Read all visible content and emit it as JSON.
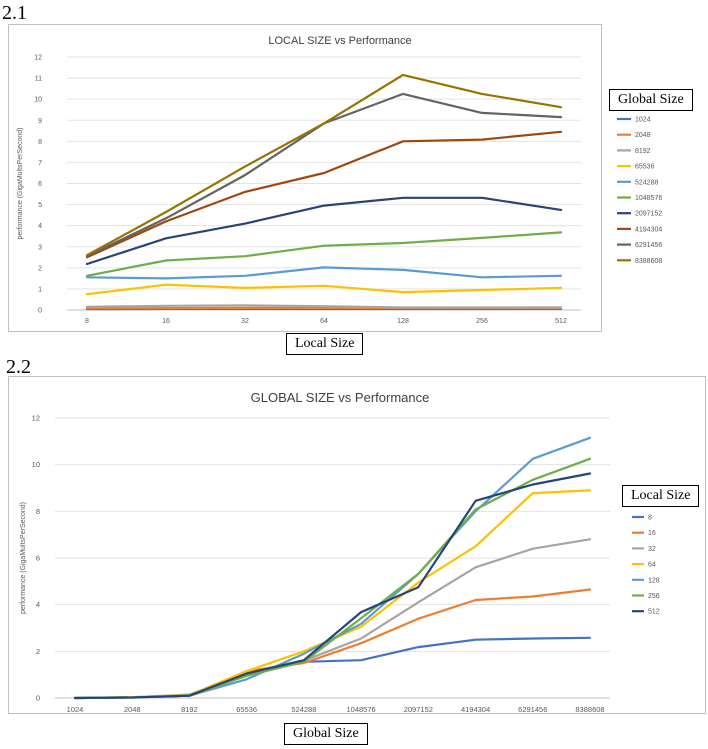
{
  "section_labels": {
    "first": "2.1",
    "second": "2.2"
  },
  "box_labels": {
    "chart1_legend": "Global Size",
    "chart1_x": "Local Size",
    "chart2_legend": "Local Size",
    "chart2_x": "Global Size"
  },
  "chart_data": [
    {
      "type": "line",
      "title": "LOCAL SIZE vs Performance",
      "xlabel": "",
      "ylabel": "performance (GigaMultsPerSecond)",
      "categories": [
        "8",
        "16",
        "32",
        "64",
        "128",
        "256",
        "512"
      ],
      "ylim": [
        0,
        12
      ],
      "yticks": [
        0,
        1,
        2,
        3,
        4,
        5,
        6,
        7,
        8,
        9,
        10,
        11,
        12
      ],
      "grid": true,
      "legend_position": "right",
      "series": [
        {
          "name": "1024",
          "color": "#4472C4",
          "values": [
            0.04,
            0.05,
            0.05,
            0.05,
            0.05,
            0.05,
            0.05
          ]
        },
        {
          "name": "2048",
          "color": "#ED7D31",
          "values": [
            0.08,
            0.09,
            0.1,
            0.1,
            0.1,
            0.1,
            0.09
          ]
        },
        {
          "name": "8192",
          "color": "#A5A5A5",
          "values": [
            0.15,
            0.2,
            0.22,
            0.18,
            0.12,
            0.12,
            0.12
          ]
        },
        {
          "name": "65536",
          "color": "#FFC000",
          "values": [
            0.75,
            1.2,
            1.05,
            1.15,
            0.85,
            0.95,
            1.05
          ]
        },
        {
          "name": "524288",
          "color": "#5B9BD5",
          "values": [
            1.55,
            1.5,
            1.62,
            2.02,
            1.9,
            1.55,
            1.62
          ]
        },
        {
          "name": "1048576",
          "color": "#70AD47",
          "values": [
            1.62,
            2.35,
            2.55,
            3.05,
            3.18,
            3.42,
            3.68
          ]
        },
        {
          "name": "2097152",
          "color": "#264478",
          "values": [
            2.18,
            3.4,
            4.1,
            4.95,
            5.32,
            5.32,
            4.75
          ]
        },
        {
          "name": "4194304",
          "color": "#9E480E",
          "values": [
            2.5,
            4.2,
            5.6,
            6.5,
            8.0,
            8.08,
            8.45
          ]
        },
        {
          "name": "6291456",
          "color": "#636363",
          "values": [
            2.55,
            4.35,
            6.4,
            8.85,
            10.25,
            9.35,
            9.15
          ]
        },
        {
          "name": "8388608",
          "color": "#997300",
          "values": [
            2.6,
            4.65,
            6.8,
            8.85,
            11.15,
            10.25,
            9.62
          ]
        }
      ]
    },
    {
      "type": "line",
      "title": "GLOBAL SIZE vs Performance",
      "xlabel": "",
      "ylabel": "performance (GigaMultsPerSecond)",
      "categories": [
        "1024",
        "2048",
        "8192",
        "65536",
        "524288",
        "1048576",
        "2097152",
        "4194304",
        "6291456",
        "8388608"
      ],
      "ylim": [
        0,
        12
      ],
      "yticks": [
        0,
        2,
        4,
        6,
        8,
        10,
        12
      ],
      "grid": true,
      "legend_position": "right",
      "series": [
        {
          "name": "8",
          "color": "#4472C4",
          "values": [
            0.0,
            0.03,
            0.1,
            1.0,
            1.55,
            1.62,
            2.18,
            2.5,
            2.55,
            2.58
          ]
        },
        {
          "name": "16",
          "color": "#ED7D31",
          "values": [
            0.0,
            0.03,
            0.12,
            1.15,
            1.5,
            2.35,
            3.4,
            4.2,
            4.35,
            4.65
          ]
        },
        {
          "name": "32",
          "color": "#A5A5A5",
          "values": [
            0.0,
            0.03,
            0.15,
            1.05,
            1.6,
            2.55,
            4.1,
            5.6,
            6.4,
            6.8
          ]
        },
        {
          "name": "64",
          "color": "#FFC000",
          "values": [
            0.0,
            0.04,
            0.12,
            1.15,
            2.0,
            3.05,
            4.95,
            6.5,
            8.78,
            8.9
          ]
        },
        {
          "name": "128",
          "color": "#5B9BD5",
          "values": [
            0.0,
            0.02,
            0.1,
            0.8,
            1.9,
            3.18,
            5.32,
            8.0,
            10.25,
            11.15
          ]
        },
        {
          "name": "256",
          "color": "#70AD47",
          "values": [
            0.0,
            0.02,
            0.1,
            0.95,
            1.55,
            3.42,
            5.32,
            8.08,
            9.35,
            10.25
          ]
        },
        {
          "name": "512",
          "color": "#264478",
          "values": [
            0.0,
            0.02,
            0.1,
            1.05,
            1.62,
            3.68,
            4.75,
            8.45,
            9.15,
            9.62
          ]
        }
      ]
    }
  ]
}
